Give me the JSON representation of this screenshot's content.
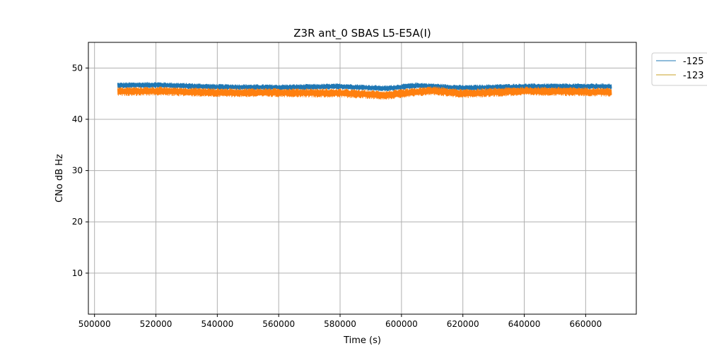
{
  "chart_data": {
    "type": "line",
    "title": "Z3R ant_0 SBAS L5-E5A(I)",
    "xlabel": "Time (s)",
    "ylabel": "CNo dB Hz",
    "xlim": [
      498000,
      676500
    ],
    "ylim": [
      2,
      55
    ],
    "xticks": [
      500000,
      520000,
      540000,
      560000,
      580000,
      600000,
      620000,
      640000,
      660000
    ],
    "yticks": [
      10,
      20,
      30,
      40,
      50
    ],
    "grid": true,
    "legend_position": "outside-top-right",
    "x_start": 507500,
    "x_end": 668500,
    "series": [
      {
        "name": "-125",
        "color": "#1f77b4",
        "noise_band_db": 1.2,
        "profile": [
          {
            "x": 507500,
            "y": 46.6
          },
          {
            "x": 520000,
            "y": 46.7
          },
          {
            "x": 540000,
            "y": 46.3
          },
          {
            "x": 560000,
            "y": 46.2
          },
          {
            "x": 580000,
            "y": 46.4
          },
          {
            "x": 595000,
            "y": 46.0
          },
          {
            "x": 605000,
            "y": 46.6
          },
          {
            "x": 620000,
            "y": 46.1
          },
          {
            "x": 640000,
            "y": 46.4
          },
          {
            "x": 668500,
            "y": 46.4
          }
        ]
      },
      {
        "name": "-123",
        "color": "#ff7f0e",
        "noise_band_db": 1.8,
        "profile": [
          {
            "x": 507500,
            "y": 45.4
          },
          {
            "x": 520000,
            "y": 45.5
          },
          {
            "x": 540000,
            "y": 45.2
          },
          {
            "x": 560000,
            "y": 45.2
          },
          {
            "x": 580000,
            "y": 45.1
          },
          {
            "x": 595000,
            "y": 44.7
          },
          {
            "x": 610000,
            "y": 45.6
          },
          {
            "x": 620000,
            "y": 45.0
          },
          {
            "x": 640000,
            "y": 45.5
          },
          {
            "x": 668500,
            "y": 45.3
          }
        ]
      }
    ]
  }
}
